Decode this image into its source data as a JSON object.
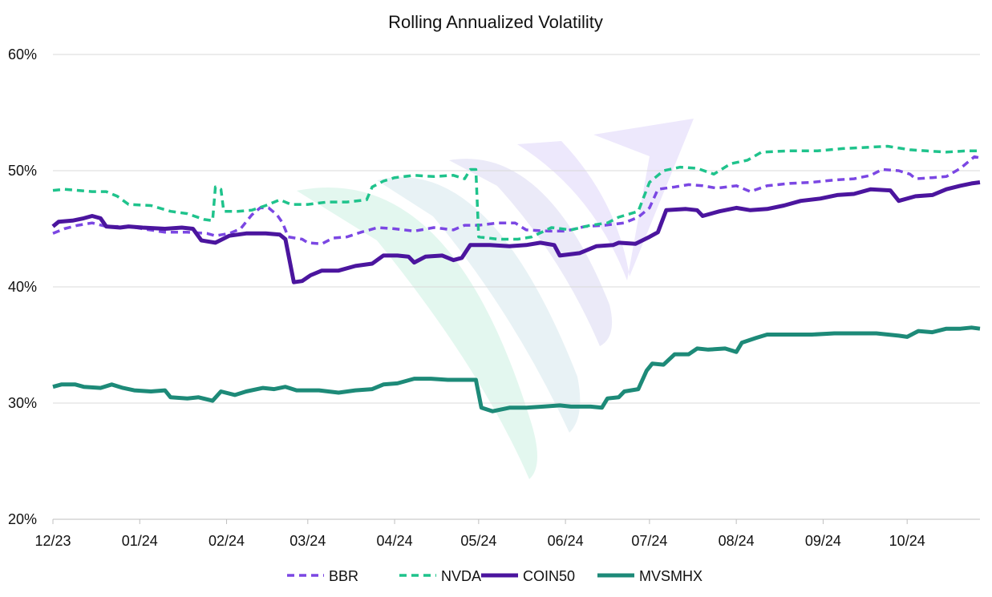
{
  "chart_data": {
    "type": "line",
    "title": "Rolling Annualized Volatility",
    "xlabel": "",
    "ylabel": "",
    "ylim": [
      0.2,
      0.6
    ],
    "yticks": [
      "20%",
      "30%",
      "40%",
      "50%",
      "60%"
    ],
    "ytick_values": [
      0.2,
      0.3,
      0.4,
      0.5,
      0.6
    ],
    "xlim": [
      "2023-12-01",
      "2024-10-27"
    ],
    "xtick_labels": [
      "12/23",
      "01/24",
      "02/24",
      "03/24",
      "04/24",
      "05/24",
      "06/24",
      "07/24",
      "08/24",
      "09/24",
      "10/24"
    ],
    "xtick_dates": [
      "2023-12-01",
      "2024-01-01",
      "2024-02-01",
      "2024-03-01",
      "2024-04-01",
      "2024-05-01",
      "2024-06-01",
      "2024-07-01",
      "2024-08-01",
      "2024-09-01",
      "2024-10-01"
    ],
    "grid": true,
    "legend_position": "bottom",
    "series": [
      {
        "name": "BBR",
        "color": "#7b47e3",
        "style": "dashed",
        "points": [
          [
            "2023-12-01",
            0.446
          ],
          [
            "2023-12-05",
            0.45
          ],
          [
            "2023-12-10",
            0.453
          ],
          [
            "2023-12-15",
            0.455
          ],
          [
            "2023-12-20",
            0.452
          ],
          [
            "2023-12-28",
            0.452
          ],
          [
            "2024-01-02",
            0.45
          ],
          [
            "2024-01-10",
            0.447
          ],
          [
            "2024-01-18",
            0.447
          ],
          [
            "2024-01-25",
            0.446
          ],
          [
            "2024-01-28",
            0.444
          ],
          [
            "2024-02-02",
            0.446
          ],
          [
            "2024-02-06",
            0.45
          ],
          [
            "2024-02-10",
            0.462
          ],
          [
            "2024-02-13",
            0.468
          ],
          [
            "2024-02-16",
            0.468
          ],
          [
            "2024-02-19",
            0.462
          ],
          [
            "2024-02-21",
            0.455
          ],
          [
            "2024-02-23",
            0.443
          ],
          [
            "2024-02-28",
            0.441
          ],
          [
            "2024-03-01",
            0.438
          ],
          [
            "2024-03-06",
            0.437
          ],
          [
            "2024-03-10",
            0.442
          ],
          [
            "2024-03-15",
            0.443
          ],
          [
            "2024-03-20",
            0.447
          ],
          [
            "2024-03-26",
            0.451
          ],
          [
            "2024-04-01",
            0.45
          ],
          [
            "2024-04-08",
            0.448
          ],
          [
            "2024-04-15",
            0.451
          ],
          [
            "2024-04-22",
            0.449
          ],
          [
            "2024-04-26",
            0.453
          ],
          [
            "2024-05-01",
            0.453
          ],
          [
            "2024-05-08",
            0.455
          ],
          [
            "2024-05-14",
            0.455
          ],
          [
            "2024-05-18",
            0.449
          ],
          [
            "2024-05-26",
            0.448
          ],
          [
            "2024-06-01",
            0.448
          ],
          [
            "2024-06-08",
            0.452
          ],
          [
            "2024-06-15",
            0.453
          ],
          [
            "2024-06-22",
            0.455
          ],
          [
            "2024-06-27",
            0.46
          ],
          [
            "2024-07-01",
            0.468
          ],
          [
            "2024-07-04",
            0.484
          ],
          [
            "2024-07-10",
            0.486
          ],
          [
            "2024-07-15",
            0.488
          ],
          [
            "2024-07-20",
            0.487
          ],
          [
            "2024-07-25",
            0.485
          ],
          [
            "2024-08-01",
            0.487
          ],
          [
            "2024-08-06",
            0.482
          ],
          [
            "2024-08-12",
            0.487
          ],
          [
            "2024-08-20",
            0.489
          ],
          [
            "2024-08-28",
            0.49
          ],
          [
            "2024-09-05",
            0.492
          ],
          [
            "2024-09-12",
            0.493
          ],
          [
            "2024-09-18",
            0.496
          ],
          [
            "2024-09-22",
            0.501
          ],
          [
            "2024-09-28",
            0.5
          ],
          [
            "2024-10-02",
            0.497
          ],
          [
            "2024-10-04",
            0.493
          ],
          [
            "2024-10-10",
            0.494
          ],
          [
            "2024-10-15",
            0.495
          ],
          [
            "2024-10-20",
            0.502
          ],
          [
            "2024-10-25",
            0.512
          ],
          [
            "2024-10-27",
            0.511
          ]
        ]
      },
      {
        "name": "NVDA",
        "color": "#1fc38c",
        "style": "dashed",
        "points": [
          [
            "2023-12-01",
            0.483
          ],
          [
            "2023-12-05",
            0.484
          ],
          [
            "2023-12-10",
            0.483
          ],
          [
            "2023-12-15",
            0.482
          ],
          [
            "2023-12-20",
            0.482
          ],
          [
            "2023-12-24",
            0.478
          ],
          [
            "2023-12-28",
            0.471
          ],
          [
            "2024-01-05",
            0.47
          ],
          [
            "2024-01-12",
            0.465
          ],
          [
            "2024-01-18",
            0.463
          ],
          [
            "2024-01-24",
            0.458
          ],
          [
            "2024-01-27",
            0.457
          ],
          [
            "2024-01-28",
            0.486
          ],
          [
            "2024-01-30",
            0.484
          ],
          [
            "2024-01-31",
            0.465
          ],
          [
            "2024-02-05",
            0.465
          ],
          [
            "2024-02-10",
            0.466
          ],
          [
            "2024-02-15",
            0.47
          ],
          [
            "2024-02-20",
            0.475
          ],
          [
            "2024-02-24",
            0.471
          ],
          [
            "2024-03-01",
            0.471
          ],
          [
            "2024-03-08",
            0.473
          ],
          [
            "2024-03-15",
            0.473
          ],
          [
            "2024-03-22",
            0.475
          ],
          [
            "2024-03-24",
            0.486
          ],
          [
            "2024-03-28",
            0.491
          ],
          [
            "2024-04-01",
            0.494
          ],
          [
            "2024-04-08",
            0.496
          ],
          [
            "2024-04-15",
            0.495
          ],
          [
            "2024-04-22",
            0.496
          ],
          [
            "2024-04-26",
            0.493
          ],
          [
            "2024-04-28",
            0.501
          ],
          [
            "2024-04-30",
            0.501
          ],
          [
            "2024-05-01",
            0.443
          ],
          [
            "2024-05-08",
            0.441
          ],
          [
            "2024-05-15",
            0.441
          ],
          [
            "2024-05-20",
            0.443
          ],
          [
            "2024-05-27",
            0.451
          ],
          [
            "2024-06-03",
            0.449
          ],
          [
            "2024-06-10",
            0.453
          ],
          [
            "2024-06-16",
            0.455
          ],
          [
            "2024-06-20",
            0.46
          ],
          [
            "2024-06-27",
            0.465
          ],
          [
            "2024-07-01",
            0.49
          ],
          [
            "2024-07-06",
            0.5
          ],
          [
            "2024-07-12",
            0.503
          ],
          [
            "2024-07-18",
            0.502
          ],
          [
            "2024-07-24",
            0.497
          ],
          [
            "2024-07-30",
            0.506
          ],
          [
            "2024-08-05",
            0.509
          ],
          [
            "2024-08-10",
            0.516
          ],
          [
            "2024-08-20",
            0.517
          ],
          [
            "2024-08-30",
            0.517
          ],
          [
            "2024-09-08",
            0.519
          ],
          [
            "2024-09-16",
            0.52
          ],
          [
            "2024-09-24",
            0.521
          ],
          [
            "2024-10-02",
            0.518
          ],
          [
            "2024-10-08",
            0.517
          ],
          [
            "2024-10-15",
            0.516
          ],
          [
            "2024-10-22",
            0.517
          ],
          [
            "2024-10-27",
            0.517
          ]
        ]
      },
      {
        "name": "COIN50",
        "color": "#4b159e",
        "style": "solid",
        "points": [
          [
            "2023-12-01",
            0.452
          ],
          [
            "2023-12-03",
            0.456
          ],
          [
            "2023-12-08",
            0.457
          ],
          [
            "2023-12-12",
            0.459
          ],
          [
            "2023-12-15",
            0.461
          ],
          [
            "2023-12-18",
            0.459
          ],
          [
            "2023-12-20",
            0.452
          ],
          [
            "2023-12-25",
            0.451
          ],
          [
            "2023-12-28",
            0.452
          ],
          [
            "2024-01-02",
            0.451
          ],
          [
            "2024-01-10",
            0.45
          ],
          [
            "2024-01-16",
            0.451
          ],
          [
            "2024-01-20",
            0.45
          ],
          [
            "2024-01-23",
            0.44
          ],
          [
            "2024-01-28",
            0.438
          ],
          [
            "2024-02-02",
            0.444
          ],
          [
            "2024-02-08",
            0.446
          ],
          [
            "2024-02-15",
            0.446
          ],
          [
            "2024-02-20",
            0.445
          ],
          [
            "2024-02-22",
            0.441
          ],
          [
            "2024-02-25",
            0.404
          ],
          [
            "2024-02-28",
            0.405
          ],
          [
            "2024-03-02",
            0.41
          ],
          [
            "2024-03-06",
            0.414
          ],
          [
            "2024-03-12",
            0.414
          ],
          [
            "2024-03-18",
            0.418
          ],
          [
            "2024-03-24",
            0.42
          ],
          [
            "2024-03-28",
            0.427
          ],
          [
            "2024-04-02",
            0.427
          ],
          [
            "2024-04-06",
            0.426
          ],
          [
            "2024-04-08",
            0.421
          ],
          [
            "2024-04-12",
            0.426
          ],
          [
            "2024-04-18",
            0.427
          ],
          [
            "2024-04-22",
            0.423
          ],
          [
            "2024-04-25",
            0.425
          ],
          [
            "2024-04-28",
            0.436
          ],
          [
            "2024-05-05",
            0.436
          ],
          [
            "2024-05-12",
            0.435
          ],
          [
            "2024-05-18",
            0.436
          ],
          [
            "2024-05-23",
            0.438
          ],
          [
            "2024-05-28",
            0.436
          ],
          [
            "2024-05-30",
            0.427
          ],
          [
            "2024-06-06",
            0.429
          ],
          [
            "2024-06-12",
            0.435
          ],
          [
            "2024-06-18",
            0.436
          ],
          [
            "2024-06-20",
            0.438
          ],
          [
            "2024-06-26",
            0.437
          ],
          [
            "2024-07-01",
            0.443
          ],
          [
            "2024-07-04",
            0.447
          ],
          [
            "2024-07-07",
            0.466
          ],
          [
            "2024-07-14",
            0.467
          ],
          [
            "2024-07-18",
            0.466
          ],
          [
            "2024-07-20",
            0.461
          ],
          [
            "2024-07-26",
            0.465
          ],
          [
            "2024-08-01",
            0.468
          ],
          [
            "2024-08-06",
            0.466
          ],
          [
            "2024-08-12",
            0.467
          ],
          [
            "2024-08-18",
            0.47
          ],
          [
            "2024-08-24",
            0.474
          ],
          [
            "2024-08-31",
            0.476
          ],
          [
            "2024-09-06",
            0.479
          ],
          [
            "2024-09-12",
            0.48
          ],
          [
            "2024-09-18",
            0.484
          ],
          [
            "2024-09-25",
            0.483
          ],
          [
            "2024-09-28",
            0.474
          ],
          [
            "2024-10-04",
            0.478
          ],
          [
            "2024-10-10",
            0.479
          ],
          [
            "2024-10-15",
            0.484
          ],
          [
            "2024-10-20",
            0.487
          ],
          [
            "2024-10-24",
            0.489
          ],
          [
            "2024-10-27",
            0.49
          ]
        ]
      },
      {
        "name": "MVSMHX",
        "color": "#1d8a78",
        "style": "solid",
        "points": [
          [
            "2023-12-01",
            0.314
          ],
          [
            "2023-12-04",
            0.316
          ],
          [
            "2023-12-09",
            0.316
          ],
          [
            "2023-12-12",
            0.314
          ],
          [
            "2023-12-18",
            0.313
          ],
          [
            "2023-12-22",
            0.316
          ],
          [
            "2023-12-26",
            0.313
          ],
          [
            "2023-12-30",
            0.311
          ],
          [
            "2024-01-05",
            0.31
          ],
          [
            "2024-01-10",
            0.311
          ],
          [
            "2024-01-12",
            0.305
          ],
          [
            "2024-01-18",
            0.304
          ],
          [
            "2024-01-22",
            0.305
          ],
          [
            "2024-01-27",
            0.302
          ],
          [
            "2024-01-30",
            0.31
          ],
          [
            "2024-02-04",
            0.307
          ],
          [
            "2024-02-08",
            0.31
          ],
          [
            "2024-02-14",
            0.313
          ],
          [
            "2024-02-18",
            0.312
          ],
          [
            "2024-02-22",
            0.314
          ],
          [
            "2024-02-26",
            0.311
          ],
          [
            "2024-03-05",
            0.311
          ],
          [
            "2024-03-12",
            0.309
          ],
          [
            "2024-03-18",
            0.311
          ],
          [
            "2024-03-24",
            0.312
          ],
          [
            "2024-03-28",
            0.316
          ],
          [
            "2024-04-02",
            0.317
          ],
          [
            "2024-04-08",
            0.321
          ],
          [
            "2024-04-14",
            0.321
          ],
          [
            "2024-04-20",
            0.32
          ],
          [
            "2024-04-26",
            0.32
          ],
          [
            "2024-04-30",
            0.32
          ],
          [
            "2024-05-02",
            0.296
          ],
          [
            "2024-05-06",
            0.293
          ],
          [
            "2024-05-12",
            0.296
          ],
          [
            "2024-05-18",
            0.296
          ],
          [
            "2024-05-24",
            0.297
          ],
          [
            "2024-05-30",
            0.298
          ],
          [
            "2024-06-03",
            0.297
          ],
          [
            "2024-06-10",
            0.297
          ],
          [
            "2024-06-14",
            0.296
          ],
          [
            "2024-06-16",
            0.304
          ],
          [
            "2024-06-20",
            0.305
          ],
          [
            "2024-06-22",
            0.31
          ],
          [
            "2024-06-27",
            0.312
          ],
          [
            "2024-06-30",
            0.328
          ],
          [
            "2024-07-02",
            0.334
          ],
          [
            "2024-07-06",
            0.333
          ],
          [
            "2024-07-10",
            0.342
          ],
          [
            "2024-07-15",
            0.342
          ],
          [
            "2024-07-18",
            0.347
          ],
          [
            "2024-07-22",
            0.346
          ],
          [
            "2024-07-28",
            0.347
          ],
          [
            "2024-08-01",
            0.344
          ],
          [
            "2024-08-03",
            0.352
          ],
          [
            "2024-08-08",
            0.356
          ],
          [
            "2024-08-12",
            0.359
          ],
          [
            "2024-08-20",
            0.359
          ],
          [
            "2024-08-28",
            0.359
          ],
          [
            "2024-09-05",
            0.36
          ],
          [
            "2024-09-12",
            0.36
          ],
          [
            "2024-09-20",
            0.36
          ],
          [
            "2024-09-28",
            0.358
          ],
          [
            "2024-10-01",
            0.357
          ],
          [
            "2024-10-05",
            0.362
          ],
          [
            "2024-10-10",
            0.361
          ],
          [
            "2024-10-15",
            0.364
          ],
          [
            "2024-10-20",
            0.364
          ],
          [
            "2024-10-24",
            0.365
          ],
          [
            "2024-10-27",
            0.364
          ]
        ]
      }
    ]
  }
}
